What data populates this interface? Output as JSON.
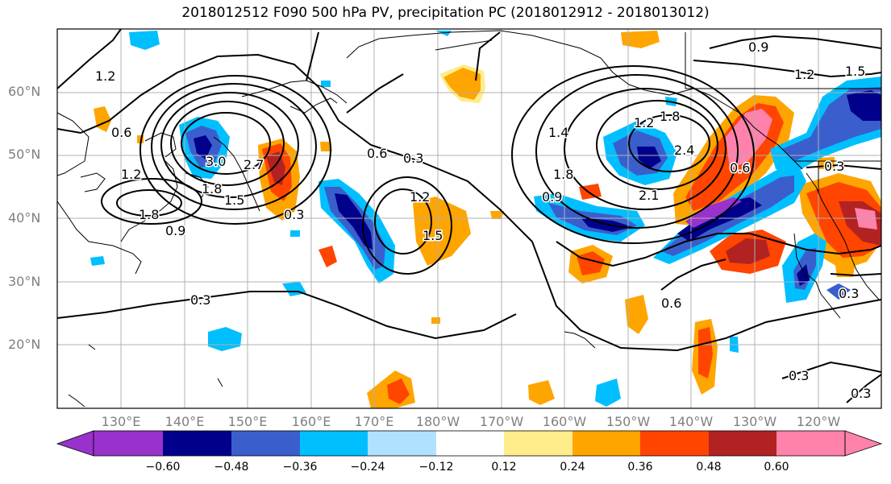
{
  "title": "2018012512 F090 500 hPa PV, precipitation PC (2018012912 - 2018013012)",
  "lat_labels": [
    "60°N",
    "50°N",
    "40°N",
    "30°N",
    "20°N"
  ],
  "lon_labels": [
    "130°E",
    "140°E",
    "150°E",
    "160°E",
    "170°E",
    "180°W",
    "170°W",
    "160°W",
    "150°W",
    "140°W",
    "130°W",
    "120°W"
  ],
  "contour_labels": [
    "1.2",
    "0.6",
    "1.2",
    "1.8",
    "0.9",
    "3.0",
    "2.7",
    "1.8",
    "1.5",
    "0.3",
    "0.6",
    "0.3",
    "1.2",
    "1.5",
    "0.3",
    "1.4",
    "1.8",
    "0.9",
    "1.2",
    "1.8",
    "2.4",
    "2.1",
    "0.6",
    "0.9",
    "1.2",
    "1.5",
    "0.3",
    "0.6",
    "0.3",
    "0.3",
    "0.3"
  ],
  "colorbar": {
    "colors": [
      "#9932cc",
      "#00008b",
      "#3a5fcd",
      "#00bfff",
      "#b0e2ff",
      "#ffffff",
      "#ffec8b",
      "#ffa500",
      "#ff4500",
      "#b22222",
      "#ff82ab"
    ],
    "tick_labels": [
      "−0.60",
      "−0.48",
      "−0.36",
      "−0.24",
      "−0.12",
      "0.12",
      "0.24",
      "0.36",
      "0.48",
      "0.60"
    ]
  }
}
